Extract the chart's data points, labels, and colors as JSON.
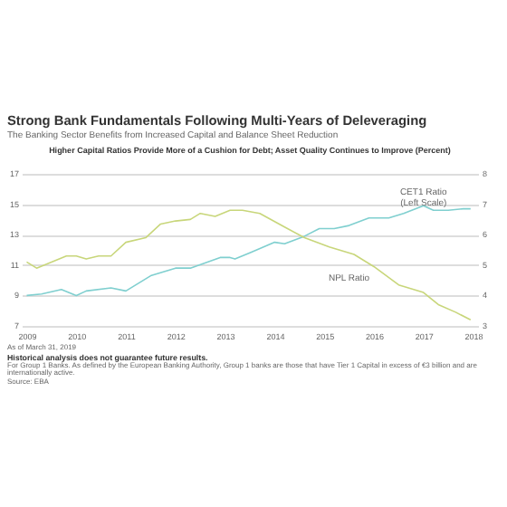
{
  "chart_data": {
    "type": "line",
    "title": "Strong Bank Fundamentals Following Multi-Years of Deleveraging",
    "subtitle": "The Banking Sector Benefits from Increased Capital and Balance Sheet Reduction",
    "annotations": [
      "Higher Capital Ratios Provide More of a Cushion for Debt; Asset Quality Continues to Improve (Percent)",
      "As of March 31, 2019",
      "Historical analysis does not guarantee future results.",
      "For Group 1 Banks. As defined by the European Banking Authority, Group 1 banks are those that have Tier 1 Capital in excess of €3 billion and are internationally active.",
      "Source: EBA"
    ],
    "xlim": [
      2008.9,
      2018.1
    ],
    "xticks": [
      2009,
      2010,
      2011,
      2012,
      2013,
      2014,
      2015,
      2016,
      2017,
      2018
    ],
    "ylim": [
      7,
      17
    ],
    "yticks": [
      7,
      9,
      11,
      13,
      15,
      17
    ],
    "y2lim": [
      3,
      8
    ],
    "y2ticks": [
      3,
      4,
      5,
      6,
      7,
      8
    ],
    "grid": "y",
    "series": [
      {
        "name": "CET1 Ratio\n(Left Scale)",
        "color": "#7fcfcf",
        "x": [
          2009.0,
          2009.3,
          2009.7,
          2010.0,
          2010.2,
          2010.7,
          2011.0,
          2011.5,
          2012.0,
          2012.3,
          2012.9,
          2013.1,
          2013.2,
          2013.5,
          2014.0,
          2014.2,
          2014.6,
          2014.9,
          2015.2,
          2015.5,
          2015.9,
          2016.3,
          2016.6,
          2017.0,
          2017.2,
          2017.5,
          2017.8,
          2017.95
        ],
        "values": [
          9.0,
          9.1,
          9.4,
          9.0,
          9.3,
          9.5,
          9.3,
          10.3,
          10.8,
          10.8,
          11.5,
          11.5,
          11.4,
          11.8,
          12.5,
          12.4,
          12.9,
          13.4,
          13.4,
          13.6,
          14.1,
          14.1,
          14.4,
          14.9,
          14.6,
          14.6,
          14.7,
          14.7
        ]
      },
      {
        "name": "NPL Ratio",
        "color": "#c8d67a",
        "axis": "y2",
        "x": [
          2009.0,
          2009.2,
          2009.8,
          2010.0,
          2010.2,
          2010.45,
          2010.7,
          2011.0,
          2011.4,
          2011.7,
          2012.0,
          2012.3,
          2012.5,
          2012.8,
          2013.1,
          2013.35,
          2013.7,
          2014.2,
          2014.6,
          2015.1,
          2015.6,
          2016.0,
          2016.5,
          2017.0,
          2017.3,
          2017.65,
          2017.95
        ],
        "values": [
          5.1,
          4.9,
          5.3,
          5.3,
          5.2,
          5.3,
          5.3,
          5.75,
          5.9,
          6.35,
          6.45,
          6.5,
          6.7,
          6.6,
          6.8,
          6.8,
          6.7,
          6.25,
          5.9,
          5.6,
          5.35,
          4.95,
          4.35,
          4.1,
          3.7,
          3.45,
          3.2
        ]
      }
    ]
  }
}
